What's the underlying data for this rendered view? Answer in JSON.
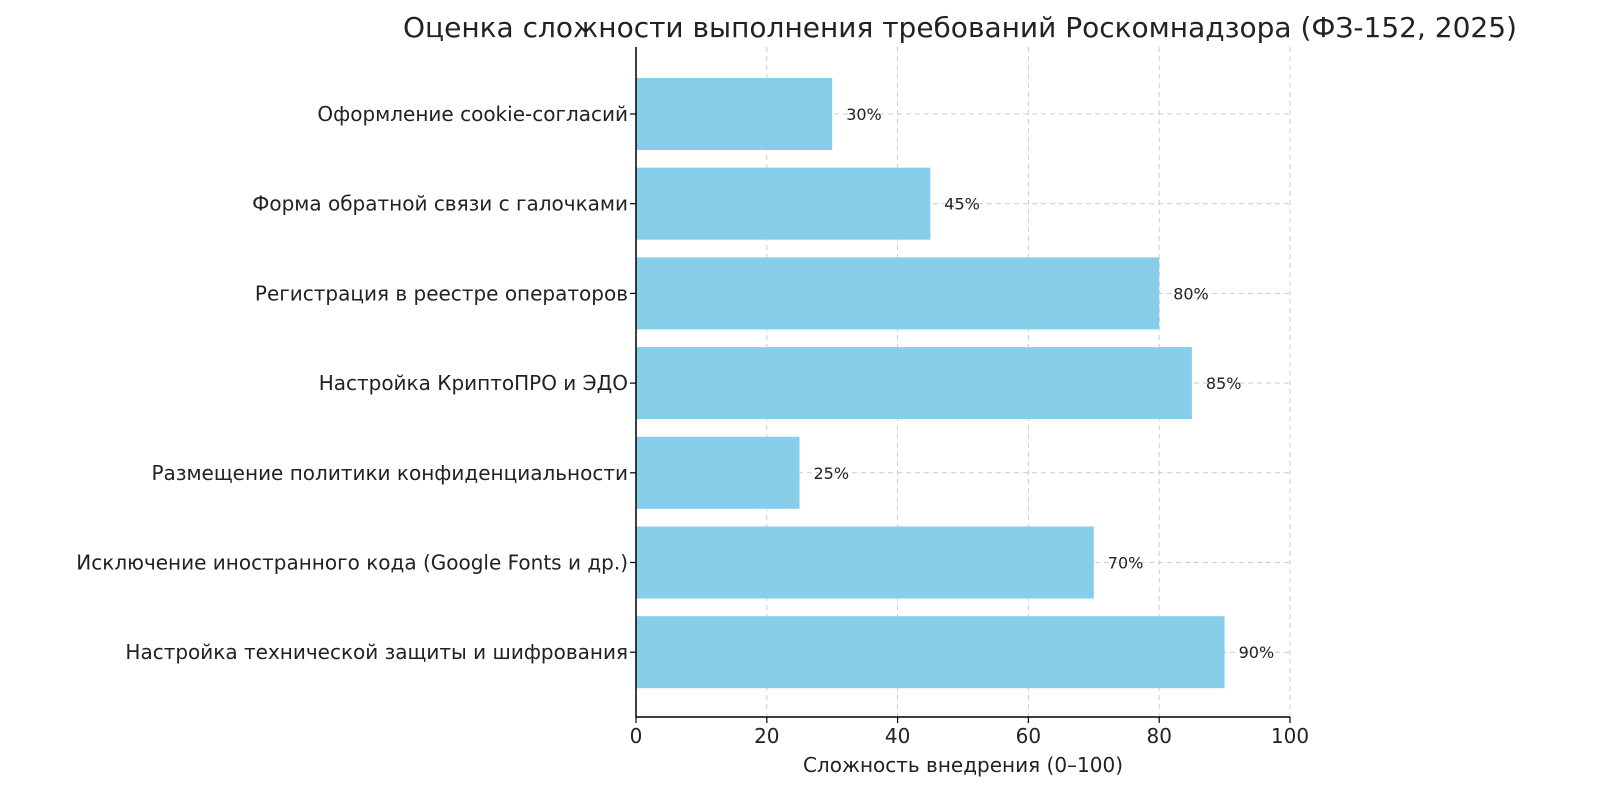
{
  "chart_data": {
    "type": "bar",
    "orientation": "horizontal",
    "title": "Оценка сложности выполнения требований Роскомнадзора (ФЗ-152, 2025)",
    "xlabel": "Сложность внедрения (0–100)",
    "ylabel": "",
    "xlim": [
      0,
      100
    ],
    "xticks": [
      0,
      20,
      40,
      60,
      80,
      100
    ],
    "grid": true,
    "bar_color": "#87CEEB",
    "categories": [
      "Оформление cookie-согласий",
      "Форма обратной связи с галочками",
      "Регистрация в реестре операторов",
      "Настройка КриптоПРО и ЭДО",
      "Размещение политики конфиденциальности",
      "Исключение иностранного кода (Google Fonts и др.)",
      "Настройка технической защиты и шифрования"
    ],
    "values": [
      30,
      45,
      80,
      85,
      25,
      70,
      90
    ],
    "data_labels": [
      "30%",
      "45%",
      "80%",
      "85%",
      "25%",
      "70%",
      "90%"
    ]
  }
}
